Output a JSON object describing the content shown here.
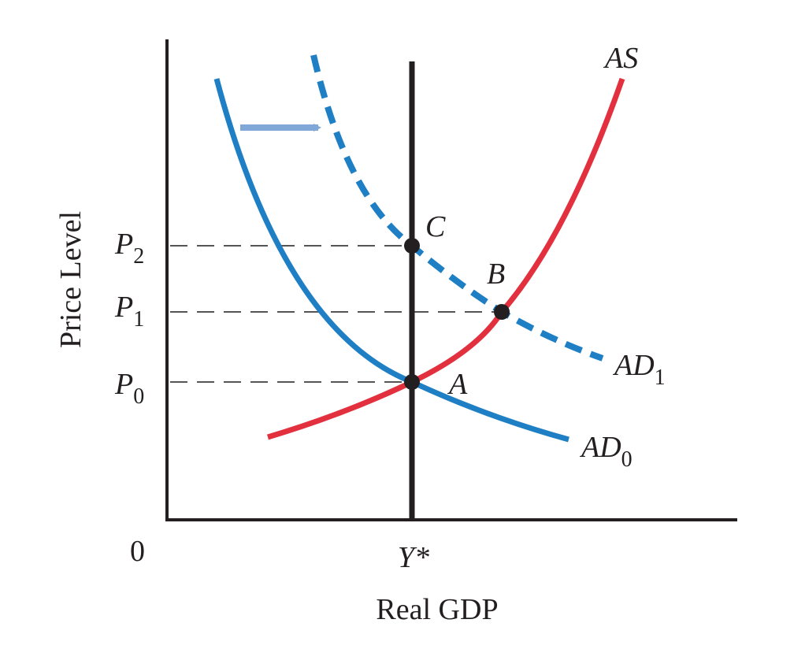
{
  "axes": {
    "y_label": "Price Level",
    "x_label": "Real GDP",
    "origin": "0",
    "x_mark": "Y*"
  },
  "price_levels": [
    {
      "main": "P",
      "sub": "2"
    },
    {
      "main": "P",
      "sub": "1"
    },
    {
      "main": "P",
      "sub": "0"
    }
  ],
  "curves": {
    "as": "AS",
    "ad1": {
      "main": "AD",
      "sub": "1"
    },
    "ad0": {
      "main": "AD",
      "sub": "0"
    }
  },
  "points": [
    "C",
    "B",
    "A"
  ]
}
